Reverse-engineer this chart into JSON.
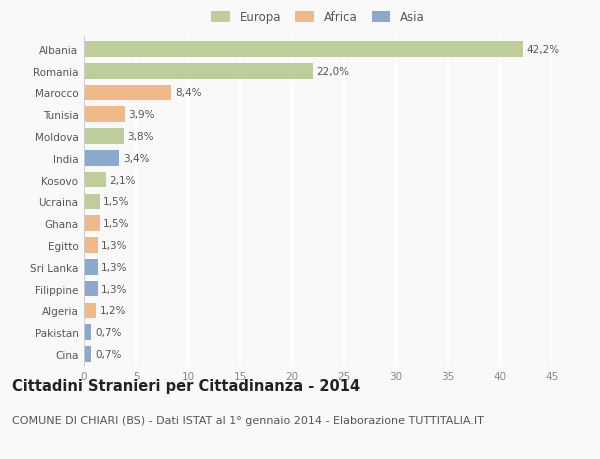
{
  "countries": [
    "Albania",
    "Romania",
    "Marocco",
    "Tunisia",
    "Moldova",
    "India",
    "Kosovo",
    "Ucraina",
    "Ghana",
    "Egitto",
    "Sri Lanka",
    "Filippine",
    "Algeria",
    "Pakistan",
    "Cina"
  ],
  "values": [
    42.2,
    22.0,
    8.4,
    3.9,
    3.8,
    3.4,
    2.1,
    1.5,
    1.5,
    1.3,
    1.3,
    1.3,
    1.2,
    0.7,
    0.7
  ],
  "labels": [
    "42,2%",
    "22,0%",
    "8,4%",
    "3,9%",
    "3,8%",
    "3,4%",
    "2,1%",
    "1,5%",
    "1,5%",
    "1,3%",
    "1,3%",
    "1,3%",
    "1,2%",
    "0,7%",
    "0,7%"
  ],
  "continents": [
    "Europa",
    "Europa",
    "Africa",
    "Africa",
    "Europa",
    "Asia",
    "Europa",
    "Europa",
    "Africa",
    "Africa",
    "Asia",
    "Asia",
    "Africa",
    "Asia",
    "Asia"
  ],
  "continent_colors": {
    "Europa": "#b5c98e",
    "Africa": "#f0b07a",
    "Asia": "#7b9fc7"
  },
  "legend_labels": [
    "Europa",
    "Africa",
    "Asia"
  ],
  "legend_colors": [
    "#b5c98e",
    "#f0b07a",
    "#7b9fc7"
  ],
  "title": "Cittadini Stranieri per Cittadinanza - 2014",
  "subtitle": "COMUNE DI CHIARI (BS) - Dati ISTAT al 1° gennaio 2014 - Elaborazione TUTTITALIA.IT",
  "xlim": [
    0,
    45
  ],
  "xticks": [
    0,
    5,
    10,
    15,
    20,
    25,
    30,
    35,
    40,
    45
  ],
  "bg_color": "#f9f9f9",
  "grid_color": "#ffffff",
  "bar_height": 0.72,
  "title_fontsize": 10.5,
  "subtitle_fontsize": 8,
  "label_fontsize": 7.5,
  "tick_fontsize": 7.5,
  "legend_fontsize": 8.5
}
